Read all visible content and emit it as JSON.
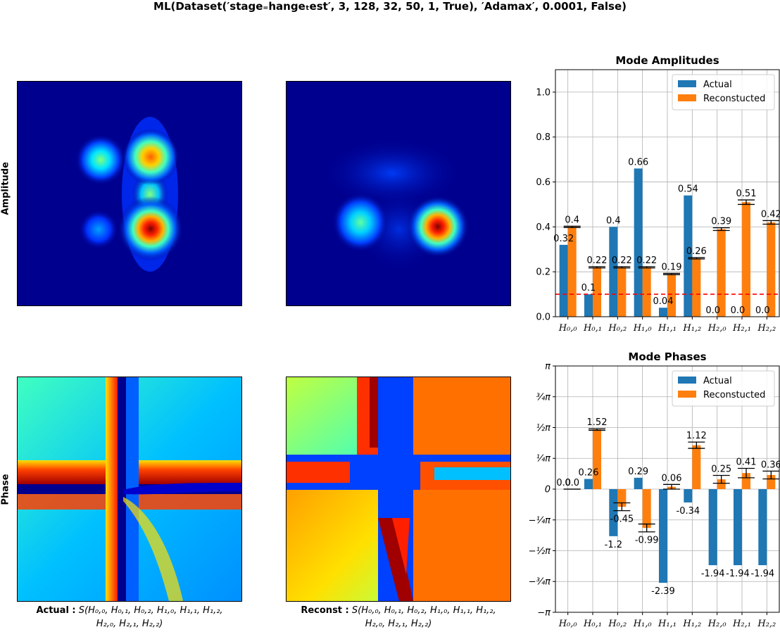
{
  "figure": {
    "title": "ML(Dataset(′stage₌hangeₜest′, 3, 128, 32, 50, 1, True), ′Adamax′, 0.0001, False)"
  },
  "row_labels": {
    "amplitude": "Amplitude",
    "phase": "Phase"
  },
  "captions": {
    "actual_prefix": "Actual :",
    "reconst_prefix": "Reconst :",
    "actual_line1": "S(H₀,₀, H₀,₁, H₀,₂, H₁,₀, H₁,₁, H₁,₂,",
    "reconst_line1": "S(H₀,₀, H₀,₁, H₀,₂, H₁,₀, H₁,₁, H₁,₂,",
    "line2": "H₂,₀, H₂,₁, H₂,₂)"
  },
  "colors": {
    "actual": "#1f77b4",
    "reconstructed": "#ff7f0e",
    "threshold": "#ff0000",
    "grid": "#b0b0b0"
  },
  "chart_data": [
    {
      "type": "bar",
      "title": "Mode Amplitudes",
      "categories": [
        "H₀,₀",
        "H₀,₁",
        "H₀,₂",
        "H₁,₀",
        "H₁,₁",
        "H₁,₂",
        "H₂,₀",
        "H₂,₁",
        "H₂,₂"
      ],
      "series": [
        {
          "name": "Actual",
          "values": [
            0.32,
            0.1,
            0.4,
            0.66,
            0.04,
            0.54,
            0.0,
            0.0,
            0.0
          ],
          "labels": [
            "0.32",
            "0.1",
            "0.4",
            "0.66",
            "0.04",
            "0.54",
            "0.0",
            "0.0",
            "0.0"
          ]
        },
        {
          "name": "Reconstucted",
          "values": [
            0.4,
            0.22,
            0.22,
            0.22,
            0.19,
            0.26,
            0.39,
            0.51,
            0.42
          ],
          "labels": [
            "0.4",
            "0.22",
            "0.22",
            "0.22",
            "0.19",
            "0.26",
            "0.39",
            "0.51",
            "0.42"
          ],
          "error": [
            0.003,
            0.003,
            0.003,
            0.003,
            0.003,
            0.003,
            0.006,
            0.01,
            0.008
          ]
        }
      ],
      "threshold": 0.1,
      "ylim": [
        0,
        1.1
      ],
      "yticks": [
        0.0,
        0.2,
        0.4,
        0.6,
        0.8,
        1.0
      ],
      "ytick_labels": [
        "0.0",
        "0.2",
        "0.4",
        "0.6",
        "0.8",
        "1.0"
      ],
      "legend": "top-right",
      "grid": true
    },
    {
      "type": "bar",
      "title": "Mode Phases",
      "categories": [
        "H₀,₀",
        "H₀,₁",
        "H₀,₂",
        "H₁,₀",
        "H₁,₁",
        "H₁,₂",
        "H₂,₀",
        "H₂,₁",
        "H₂,₂"
      ],
      "series": [
        {
          "name": "Actual",
          "values": [
            0.0,
            0.26,
            -1.2,
            0.29,
            -2.39,
            -0.34,
            -1.94,
            -1.94,
            -1.94
          ],
          "labels": [
            "0.0",
            "0.26",
            "-1.2",
            "0.29",
            "-2.39",
            "-0.34",
            "-1.94",
            "-1.94",
            "-1.94"
          ]
        },
        {
          "name": "Reconstucted",
          "values": [
            0.0,
            1.52,
            -0.45,
            -0.99,
            0.06,
            1.12,
            0.25,
            0.41,
            0.36
          ],
          "labels": [
            "0.0",
            "1.52",
            "-0.45",
            "-0.99",
            "0.06",
            "1.12",
            "0.25",
            "0.41",
            "0.36"
          ],
          "error": [
            0.0,
            0.02,
            0.1,
            0.1,
            0.06,
            0.08,
            0.1,
            0.12,
            0.1
          ]
        }
      ],
      "ylim": [
        -3.14159,
        3.14159
      ],
      "yticks": [
        -3.14159,
        -2.35619,
        -1.5708,
        -0.7854,
        0,
        0.7854,
        1.5708,
        2.35619,
        3.14159
      ],
      "ytick_labels": [
        "−π",
        "−¾π",
        "−½π",
        "−¼π",
        "0",
        "¼π",
        "½π",
        "¾π",
        "π"
      ],
      "legend": "top-right",
      "grid": true
    }
  ]
}
